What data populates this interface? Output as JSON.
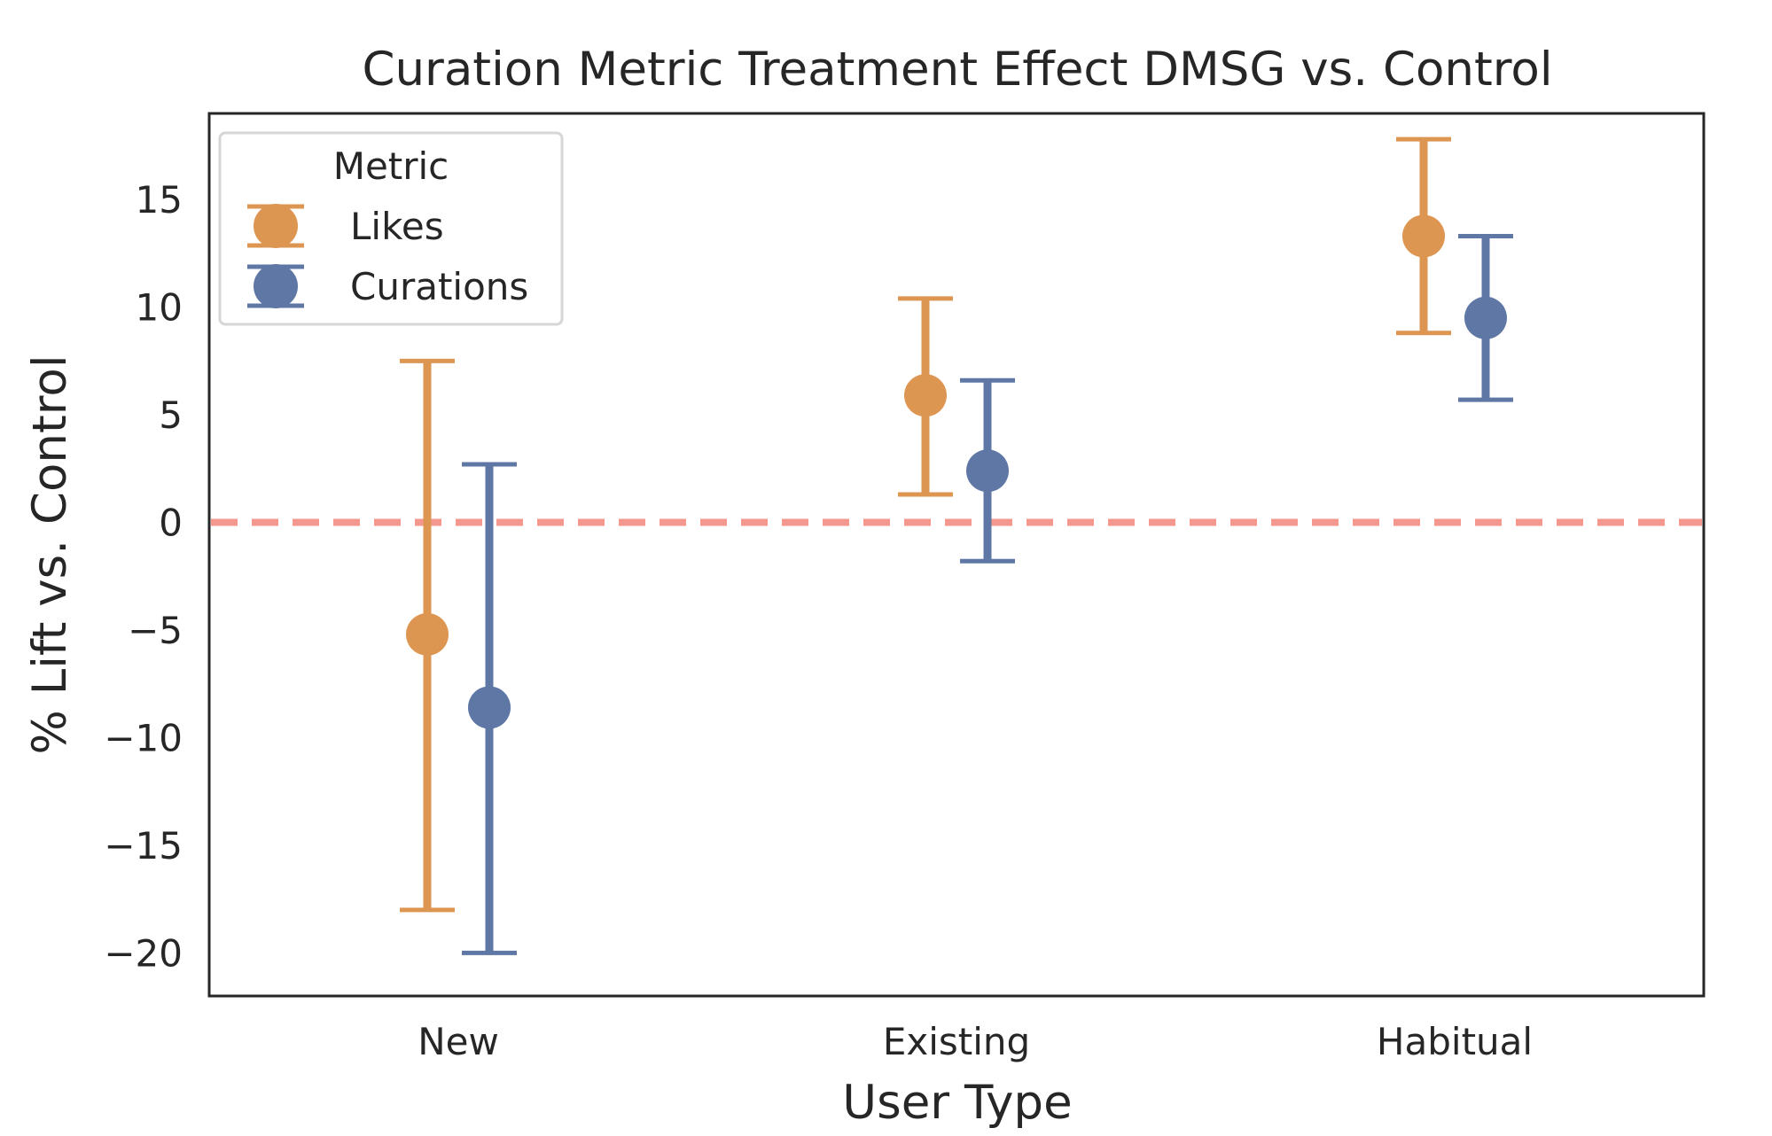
{
  "chart_data": {
    "type": "pointplot-errorbar",
    "title": "Curation Metric Treatment Effect DMSG vs. Control",
    "xlabel": "User Type",
    "ylabel": "% Lift vs. Control",
    "categories": [
      "New",
      "Existing",
      "Habitual"
    ],
    "ylim": [
      -22,
      19
    ],
    "yticks": [
      15,
      10,
      5,
      0,
      -5,
      -10,
      -15,
      -20
    ],
    "ytick_labels": [
      "15",
      "10",
      "5",
      "0",
      "−5",
      "−10",
      "−15",
      "−20"
    ],
    "reference_line": {
      "y": 0,
      "style": "dashed",
      "color": "#f4988f"
    },
    "legend": {
      "title": "Metric",
      "placement": "upper-left"
    },
    "series": [
      {
        "name": "Likes",
        "color": "#dd9652",
        "values": [
          -5.2,
          5.9,
          13.3
        ],
        "lower": [
          -18.0,
          1.3,
          8.8
        ],
        "upper": [
          7.5,
          10.4,
          17.8
        ]
      },
      {
        "name": "Curations",
        "color": "#5e77a5",
        "values": [
          -8.6,
          2.4,
          9.5
        ],
        "lower": [
          -20.0,
          -1.8,
          5.7
        ],
        "upper": [
          2.7,
          6.6,
          13.3
        ]
      }
    ]
  }
}
